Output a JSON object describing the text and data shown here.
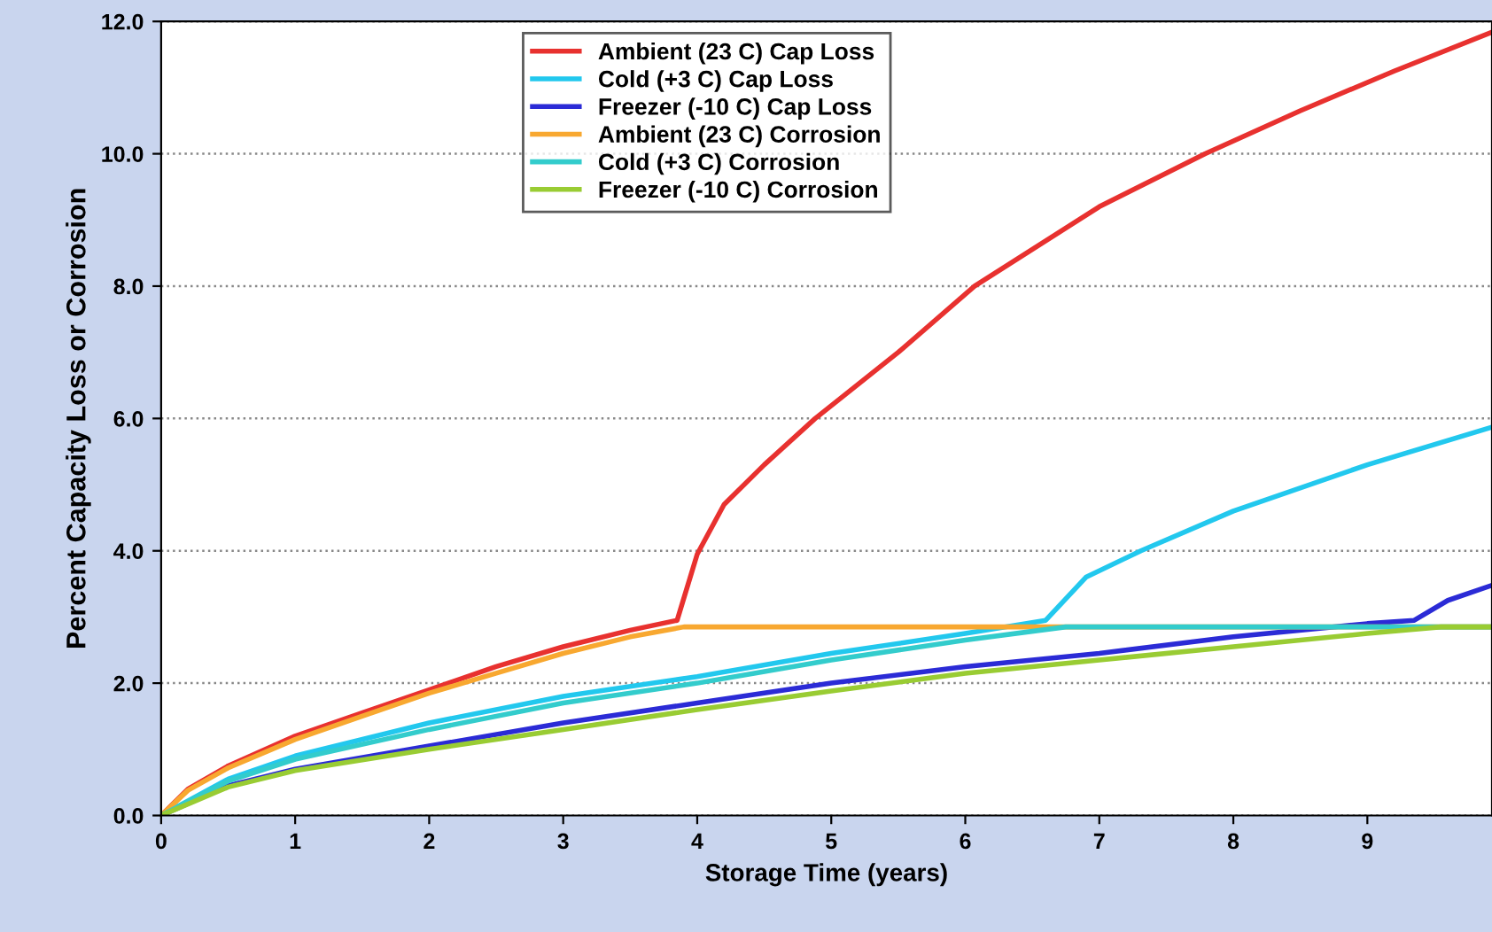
{
  "chart_data": {
    "type": "line",
    "xlabel": "Storage Time (years)",
    "ylabel": "Percent Capacity Loss or Corrosion",
    "xlim": [
      0,
      9.93
    ],
    "xticks": [
      0,
      1,
      2,
      3,
      4,
      5,
      6,
      7,
      8,
      9
    ],
    "ylim": [
      0,
      12
    ],
    "yticks": [
      {
        "value": 0,
        "label": "0.0"
      },
      {
        "value": 2,
        "label": "2.0"
      },
      {
        "value": 4,
        "label": "4.0"
      },
      {
        "value": 6,
        "label": "6.0"
      },
      {
        "value": 8,
        "label": "8.0"
      },
      {
        "value": 10,
        "label": "10.0"
      },
      {
        "value": 12,
        "label": "12.0"
      }
    ],
    "grid": "y",
    "legend": "top",
    "marker": "none",
    "line_style": "solid",
    "series": [
      {
        "name": "Ambient (23 C) Cap Loss",
        "color": "#e8312f",
        "x": [
          0,
          0.2,
          0.5,
          1,
          1.5,
          2,
          2.5,
          3,
          3.5,
          3.85,
          4.0,
          4.2,
          4.5,
          4.88,
          5.5,
          6.07,
          7,
          7.79,
          8.5,
          9.2,
          9.93
        ],
        "values": [
          0,
          0.4,
          0.75,
          1.2,
          1.55,
          1.9,
          2.25,
          2.55,
          2.8,
          2.95,
          3.95,
          4.7,
          5.3,
          6.0,
          7.0,
          8.0,
          9.2,
          10.0,
          10.65,
          11.25,
          11.84
        ]
      },
      {
        "name": "Cold (+3 C) Cap Loss",
        "color": "#22c8ee",
        "x": [
          0,
          0.5,
          1,
          2,
          3,
          4,
          5,
          6,
          6.6,
          6.9,
          7.31,
          8,
          9,
          9.93
        ],
        "values": [
          0,
          0.55,
          0.9,
          1.4,
          1.8,
          2.1,
          2.45,
          2.75,
          2.95,
          3.6,
          4.0,
          4.6,
          5.3,
          5.87
        ]
      },
      {
        "name": "Freezer (-10 C) Cap Loss",
        "color": "#2b2bd6",
        "x": [
          0,
          0.5,
          1,
          2,
          3,
          4,
          5,
          6,
          7,
          8,
          9,
          9.35,
          9.6,
          9.93
        ],
        "values": [
          0,
          0.45,
          0.7,
          1.05,
          1.4,
          1.7,
          2.0,
          2.25,
          2.45,
          2.7,
          2.9,
          2.95,
          3.25,
          3.48
        ]
      },
      {
        "name": "Ambient (23 C) Corrosion",
        "color": "#f8a830",
        "x": [
          0,
          0.2,
          0.5,
          1,
          1.5,
          2,
          2.5,
          3,
          3.5,
          3.9,
          9.93
        ],
        "values": [
          0,
          0.38,
          0.72,
          1.15,
          1.5,
          1.85,
          2.15,
          2.45,
          2.7,
          2.85,
          2.85
        ]
      },
      {
        "name": "Cold (+3 C) Corrosion",
        "color": "#33cccc",
        "x": [
          0,
          0.5,
          1,
          2,
          3,
          4,
          5,
          6,
          6.75,
          9.93
        ],
        "values": [
          0,
          0.52,
          0.85,
          1.3,
          1.7,
          2.0,
          2.35,
          2.65,
          2.85,
          2.85
        ]
      },
      {
        "name": "Freezer (-10 C) Corrosion",
        "color": "#99cc33",
        "x": [
          0,
          0.5,
          1,
          2,
          3,
          4,
          5,
          6,
          7,
          8,
          9,
          9.55,
          9.93
        ],
        "values": [
          0,
          0.43,
          0.68,
          1.0,
          1.3,
          1.6,
          1.88,
          2.15,
          2.35,
          2.55,
          2.75,
          2.85,
          2.85
        ]
      }
    ]
  }
}
